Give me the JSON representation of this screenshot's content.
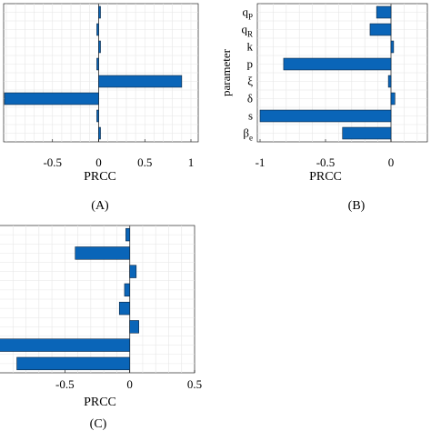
{
  "chart_data": [
    {
      "id": "A",
      "type": "bar",
      "orientation": "horizontal",
      "panel_label": "(A)",
      "xlabel": "PRCC",
      "ylabel": "",
      "xlim": [
        -1,
        1
      ],
      "xticks": [
        -0.5,
        0,
        0.5,
        1
      ],
      "xtick_labels": [
        "-0.5",
        "0",
        "0.5",
        "1"
      ],
      "grid": true,
      "values": [
        0.02,
        -0.02,
        0.02,
        -0.02,
        0.9,
        -1.02,
        -0.02,
        0.02
      ]
    },
    {
      "id": "B",
      "type": "bar",
      "orientation": "horizontal",
      "panel_label": "(B)",
      "xlabel": "PRCC",
      "ylabel": "parameter",
      "xlim": [
        -1,
        0
      ],
      "xticks": [
        -1,
        -0.5,
        0
      ],
      "xtick_labels": [
        "-1",
        "-0.5",
        "0"
      ],
      "grid": true,
      "categories": [
        {
          "base": "q",
          "sub": "P"
        },
        {
          "base": "q",
          "sub": "R"
        },
        {
          "base": "k",
          "sub": ""
        },
        {
          "base": "p",
          "sub": ""
        },
        {
          "base": "ξ",
          "sub": ""
        },
        {
          "base": "δ",
          "sub": ""
        },
        {
          "base": "s",
          "sub": ""
        },
        {
          "base": "β",
          "sub": "e"
        }
      ],
      "values": [
        -0.11,
        -0.16,
        0.02,
        -0.82,
        -0.02,
        0.03,
        -1.0,
        -0.37
      ]
    },
    {
      "id": "C",
      "type": "bar",
      "orientation": "horizontal",
      "panel_label": "(C)",
      "xlabel": "PRCC",
      "ylabel": "",
      "xlim": [
        -1,
        0.5
      ],
      "xticks": [
        -0.5,
        0,
        0.5
      ],
      "xtick_labels": [
        "-0.5",
        "0",
        "0.5"
      ],
      "grid": true,
      "values": [
        -0.03,
        -0.42,
        0.05,
        -0.04,
        -0.08,
        0.07,
        -1.06,
        -0.87
      ]
    }
  ],
  "colors": {
    "bar_fill": "#0a65b8",
    "bar_edge": "#0a2540",
    "grid": "#e6e6e6",
    "axis": "#000000",
    "zero_line": "#555555"
  }
}
